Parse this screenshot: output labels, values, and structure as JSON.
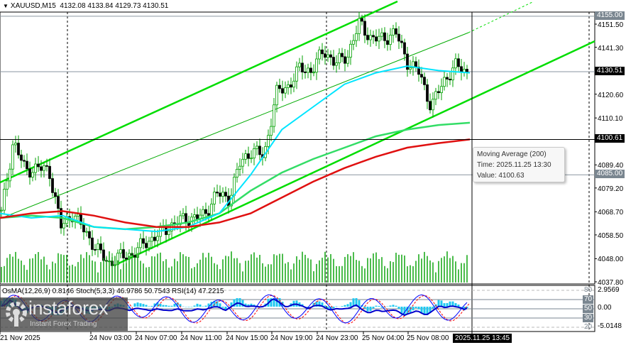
{
  "header": {
    "symbol": "XAUUSD,M15",
    "ohlc": "4132.08 4133.84 4129.73 4130.51"
  },
  "tooltip": {
    "line1": "Moving Average (200)",
    "line2": "Time: 2025.11.25 13:30",
    "line3": "Value: 4100.63"
  },
  "indicator_legend": "OsMA(12,26,9) 0.8146  Stoch(5,3,3) 46.9786 50.7543  RSI(14) 47.2215",
  "indicator_axis": {
    "max": "2.9569",
    "min": "-5.0148",
    "zero": "0.00",
    "levels": [
      "80",
      "70",
      "50",
      "30",
      "20"
    ]
  },
  "cursor_time": "2025.11.25 13:45",
  "watermark": {
    "name": "instaforex",
    "tagline": "Instant Forex Trading"
  },
  "colors": {
    "bull_bear": "#00a000",
    "ma_fast": "#00e5ff",
    "ma_mid": "#33dd66",
    "ma_200": "#e01010",
    "channel": "#00dd00",
    "volume": "#00a000",
    "osma": "#1ec8f0",
    "stoch_main": "#0000ff",
    "stoch_signal": "#ff0000",
    "rsi": "#0000cc"
  },
  "chart_data": {
    "type": "candlestick",
    "symbol": "XAUUSD",
    "timeframe": "M15",
    "y_ticks": [
      "4151.50",
      "4141.30",
      "4120.60",
      "4110.10",
      "4089.40",
      "4079.20",
      "4068.70",
      "4058.50",
      "4048.00",
      "4037.80"
    ],
    "ylim": [
      4037.8,
      4151.5
    ],
    "price_tags": [
      {
        "value": "4155.00",
        "style": "level"
      },
      {
        "value": "4130.51",
        "style": "current"
      },
      {
        "value": "4100.61",
        "style": "current"
      },
      {
        "value": "4085.00",
        "style": "level"
      }
    ],
    "x_ticks": [
      "21 Nov 2025",
      "24 Nov 03:00",
      "24 Nov 07:00",
      "24 Nov 11:00",
      "24 Nov 15:00",
      "24 Nov 19:00",
      "24 Nov 23:00",
      "25 Nov 04:00",
      "25 Nov 08:00"
    ],
    "close_anchors": [
      4068,
      4100,
      4087,
      4088,
      4087,
      4062,
      4068,
      4060,
      4052,
      4046,
      4049,
      4050,
      4055,
      4058,
      4062,
      4065,
      4066,
      4067,
      4077,
      4074,
      4090,
      4096,
      4093,
      4121,
      4124,
      4132,
      4131,
      4140,
      4134,
      4138,
      4152,
      4145,
      4145,
      4148,
      4135,
      4130,
      4115,
      4126,
      4133,
      4130.51
    ],
    "ma_fast": [
      4068,
      4066,
      4067,
      4062,
      4061,
      4060,
      4062,
      4068,
      4085,
      4105,
      4115,
      4125,
      4130,
      4133,
      4131,
      4130
    ],
    "ma_mid": [
      4066,
      4067,
      4066,
      4062,
      4061,
      4062,
      4064,
      4068,
      4078,
      4086,
      4092,
      4097,
      4102,
      4105,
      4107,
      4108
    ],
    "ma_200": [
      4066,
      4068,
      4069,
      4067,
      4064,
      4062,
      4062,
      4064,
      4068,
      4075,
      4082,
      4088,
      4093,
      4097,
      4099,
      4100.63
    ]
  }
}
